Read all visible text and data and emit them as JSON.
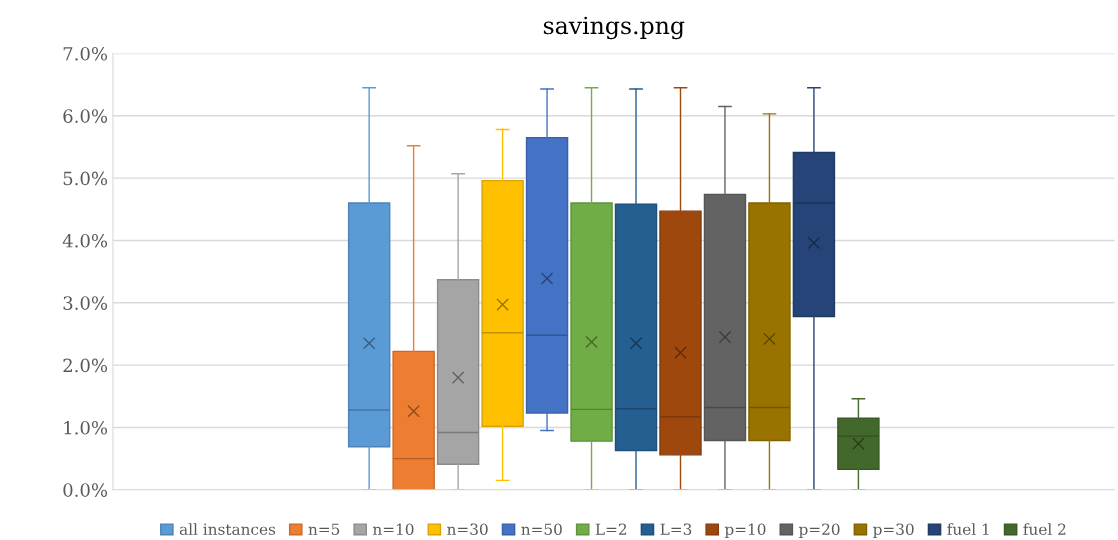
{
  "chart_data": {
    "type": "box",
    "title": "savings.png",
    "categories": [
      null
    ],
    "ylim": [
      0,
      7
    ],
    "yticks": [
      {
        "value": 0,
        "label": "0.0%"
      },
      {
        "value": 1,
        "label": "1.0%"
      },
      {
        "value": 2,
        "label": "2.0%"
      },
      {
        "value": 3,
        "label": "3.0%"
      },
      {
        "value": 4,
        "label": "4.0%"
      },
      {
        "value": 5,
        "label": "5.0%"
      },
      {
        "value": 6,
        "label": "6.0%"
      },
      {
        "value": 7,
        "label": "7.0%"
      }
    ],
    "grid": "y",
    "legend": "bottom",
    "marker": "cross",
    "series": [
      {
        "name": "all instances",
        "color": "#5b9bd5",
        "boxes": [
          {
            "low": 0,
            "q1": 0.69,
            "median": 1.28,
            "q3": 4.6,
            "high": 6.45,
            "mean": 2.35
          }
        ]
      },
      {
        "name": "n=5",
        "color": "#ed7d31",
        "boxes": [
          {
            "low": 0,
            "q1": 0,
            "median": 0.5,
            "q3": 2.22,
            "high": 5.52,
            "mean": 1.26
          }
        ]
      },
      {
        "name": "n=10",
        "color": "#a5a5a5",
        "boxes": [
          {
            "low": 0,
            "q1": 0.41,
            "median": 0.92,
            "q3": 3.37,
            "high": 5.07,
            "mean": 1.8
          }
        ]
      },
      {
        "name": "n=30",
        "color": "#ffc000",
        "boxes": [
          {
            "low": 0.15,
            "q1": 1.02,
            "median": 2.52,
            "q3": 4.96,
            "high": 5.78,
            "mean": 2.97
          }
        ]
      },
      {
        "name": "n=50",
        "color": "#4472c4",
        "boxes": [
          {
            "low": 0.95,
            "q1": 1.23,
            "median": 2.48,
            "q3": 5.65,
            "high": 6.43,
            "mean": 3.39
          }
        ]
      },
      {
        "name": "L=2",
        "color": "#70ad47",
        "boxes": [
          {
            "low": 0,
            "q1": 0.78,
            "median": 1.29,
            "q3": 4.6,
            "high": 6.45,
            "mean": 2.37
          }
        ]
      },
      {
        "name": "L=3",
        "color": "#255e91",
        "boxes": [
          {
            "low": 0,
            "q1": 0.63,
            "median": 1.3,
            "q3": 4.58,
            "high": 6.43,
            "mean": 2.35
          }
        ]
      },
      {
        "name": "p=10",
        "color": "#9e480e",
        "boxes": [
          {
            "low": 0,
            "q1": 0.56,
            "median": 1.17,
            "q3": 4.47,
            "high": 6.45,
            "mean": 2.2
          }
        ]
      },
      {
        "name": "p=20",
        "color": "#636363",
        "boxes": [
          {
            "low": 0,
            "q1": 0.79,
            "median": 1.32,
            "q3": 4.74,
            "high": 6.15,
            "mean": 2.45
          }
        ]
      },
      {
        "name": "p=30",
        "color": "#997300",
        "boxes": [
          {
            "low": 0,
            "q1": 0.79,
            "median": 1.32,
            "q3": 4.6,
            "high": 6.03,
            "mean": 2.42
          }
        ]
      },
      {
        "name": "fuel 1",
        "color": "#264478",
        "boxes": [
          {
            "low": 0,
            "q1": 2.78,
            "median": 4.6,
            "q3": 5.41,
            "high": 6.45,
            "mean": 3.96
          }
        ]
      },
      {
        "name": "fuel 2",
        "color": "#43682b",
        "boxes": [
          {
            "low": 0,
            "q1": 0.33,
            "median": 0.86,
            "q3": 1.15,
            "high": 1.46,
            "mean": 0.74
          }
        ]
      }
    ]
  }
}
